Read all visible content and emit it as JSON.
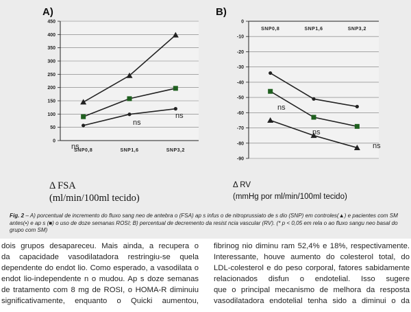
{
  "chart_data": [
    {
      "panel": "A)",
      "type": "line",
      "categories": [
        "SNP0,8",
        "SNP1,6",
        "SNP3,2"
      ],
      "ylim": [
        0,
        450
      ],
      "yticks": [
        0,
        50,
        100,
        150,
        200,
        250,
        300,
        350,
        400,
        450
      ],
      "grid": true,
      "series": [
        {
          "marker": "triangle",
          "color": "#222222",
          "values": [
            145,
            245,
            398
          ]
        },
        {
          "marker": "square",
          "color": "#1f5f1f",
          "values": [
            90,
            158,
            197
          ]
        },
        {
          "marker": "circle",
          "color": "#222222",
          "values": [
            57,
            99,
            120
          ]
        }
      ],
      "annotations": [
        "ns",
        "ns",
        "ns"
      ],
      "unit_lines": [
        "Δ FSA",
        "(ml/min/100ml tecido)"
      ]
    },
    {
      "panel": "B)",
      "type": "line",
      "categories": [
        "SNP0,8",
        "SNP1,6",
        "SNP3,2"
      ],
      "ylim": [
        -90,
        0
      ],
      "yticks": [
        0,
        -10,
        -20,
        -30,
        -40,
        -50,
        -60,
        -70,
        -80,
        -90
      ],
      "grid": true,
      "series": [
        {
          "marker": "circle",
          "color": "#222222",
          "values": [
            -34,
            -51,
            -56
          ]
        },
        {
          "marker": "square",
          "color": "#1f5f1f",
          "values": [
            -46,
            -63,
            -69
          ]
        },
        {
          "marker": "triangle",
          "color": "#222222",
          "values": [
            -65,
            -75,
            -83
          ]
        }
      ],
      "annotations": [
        "ns",
        "ns",
        "ns"
      ],
      "unit_lines": [
        "Δ RV",
        "(mmHg por ml/min/100ml tecido)"
      ]
    }
  ],
  "caption": {
    "label": "Fig. 2",
    "text": " – A) porcentual de incremento do fluxo sang    neo de antebra  o (FSA) ap  s infus  o de nitroprussiato de s  dio (SNP) em controles(▲) e pacientes com SM antes(•) e ap  s (■) o uso de doze semanas ROSI; B) percentual de decremento da resist  ncia vascular (RV). (* p < 0,05 em rela    o ao fluxo sangu neo basal do grupo com SM)"
  },
  "body_left": [
    "dois grupos desapareceu. Mais ainda, a recupera    o",
    "da capacidade vasodilatadora restringiu-se   quela",
    "dependente do endot  lio. Como esperado, a vasodilata    o",
    "endot  lio-independente n  o mudou. Ap  s doze semanas",
    "de tratamento com 8 mg de ROSI, o HOMA-R diminuiu",
    "significativamente, enquanto o Quicki aumentou,"
  ],
  "body_right": [
    "fibrinog  nio diminu ram 52,4% e 18%, respectivamente.",
    "Interessante, houve aumento do colesterol total, do",
    "LDL-colesterol e do peso corporal, fatores sabidamente",
    "relacionados     disfun    o endotelial. Isso sugere",
    "que o principal mecanismo de melhora da resposta",
    "vasodilatadora endotelial tenha sido a diminui    o da"
  ]
}
